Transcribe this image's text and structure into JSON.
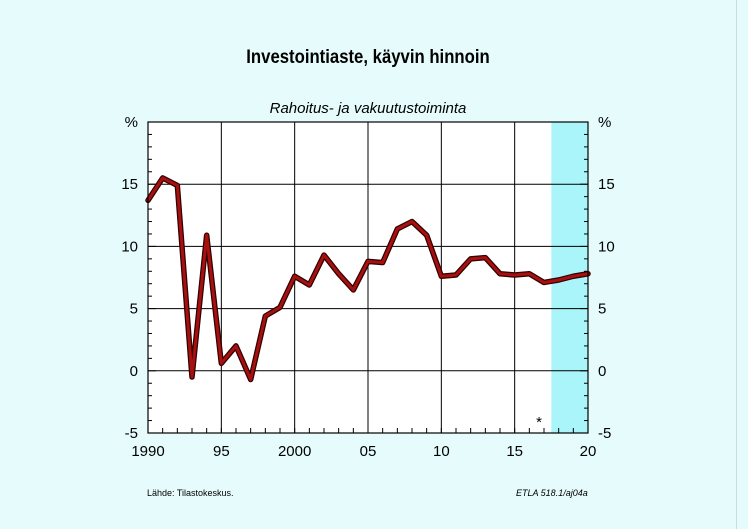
{
  "title": "Investointiaste, käyvin hinnoin",
  "subtitle": "Rahoitus- ja vakuutustoiminta",
  "unit_left": "%",
  "unit_right": "%",
  "source": "Lähde:   Tilastokeskus.",
  "code": "ETLA 518.1/aj04a",
  "forecast_marker": "*",
  "colors": {
    "background": "#e6fcfc",
    "plot_bg": "#ffffff",
    "forecast_bg": "#aaf5fa",
    "line": "#a81010",
    "line_shadow": "#300000"
  },
  "chart_data": {
    "type": "line",
    "title": "Investointiaste, käyvin hinnoin",
    "subtitle": "Rahoitus- ja vakuutustoiminta",
    "ylabel": "%",
    "xlim": [
      1990,
      2020
    ],
    "ylim": [
      -5,
      20
    ],
    "x_ticks": [
      "1990",
      "95",
      "2000",
      "05",
      "10",
      "15",
      "20"
    ],
    "y_ticks": [
      "-5",
      "0",
      "5",
      "10",
      "15",
      "%"
    ],
    "forecast_start": 2017.5,
    "grid": true,
    "x": [
      1990,
      1991,
      1992,
      1993,
      1994,
      1995,
      1996,
      1997,
      1998,
      1999,
      2000,
      2001,
      2002,
      2003,
      2004,
      2005,
      2006,
      2007,
      2008,
      2009,
      2010,
      2011,
      2012,
      2013,
      2014,
      2015,
      2016,
      2017,
      2018,
      2019,
      2020
    ],
    "values": [
      13.7,
      15.5,
      14.9,
      -0.5,
      10.9,
      0.6,
      2.0,
      -0.7,
      4.4,
      5.1,
      7.6,
      6.9,
      9.3,
      7.8,
      6.5,
      8.8,
      8.7,
      11.4,
      12.0,
      10.9,
      7.6,
      7.7,
      9.0,
      9.1,
      7.8,
      7.7,
      7.8,
      7.1,
      7.3,
      7.6,
      7.8
    ]
  }
}
